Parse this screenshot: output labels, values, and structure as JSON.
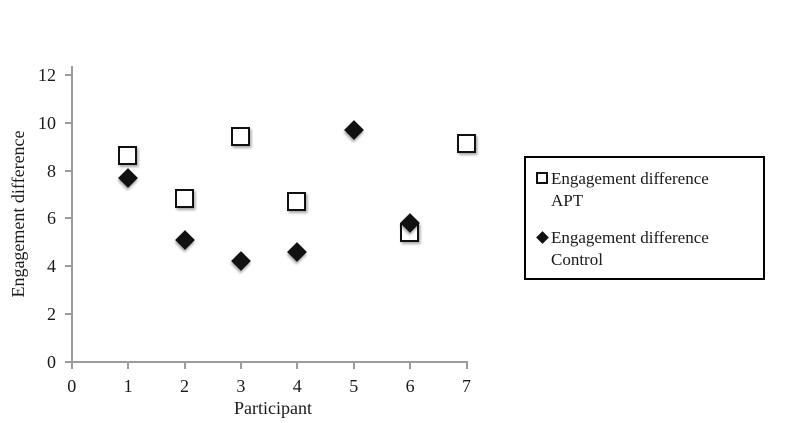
{
  "chart_data": {
    "type": "scatter",
    "title": "",
    "xlabel": "Participant",
    "ylabel": "Engagement difference",
    "xlim": [
      0,
      7
    ],
    "ylim": [
      0,
      12
    ],
    "x_ticks": [
      "0",
      "1",
      "2",
      "3",
      "4",
      "5",
      "6",
      "7"
    ],
    "y_ticks": [
      "0",
      "2",
      "4",
      "6",
      "8",
      "10",
      "12"
    ],
    "grid": false,
    "legend_position": "right",
    "series": [
      {
        "name": "Engagement difference APT",
        "marker": "open-square",
        "points": [
          {
            "x": 1,
            "y": 8.6
          },
          {
            "x": 2,
            "y": 6.8
          },
          {
            "x": 3,
            "y": 9.4
          },
          {
            "x": 4,
            "y": 6.7
          },
          {
            "x": 6,
            "y": 5.4
          },
          {
            "x": 7,
            "y": 9.1
          }
        ]
      },
      {
        "name": "Engagement difference Control",
        "marker": "filled-diamond",
        "points": [
          {
            "x": 1,
            "y": 7.7
          },
          {
            "x": 2,
            "y": 5.1
          },
          {
            "x": 3,
            "y": 4.2
          },
          {
            "x": 4,
            "y": 4.6
          },
          {
            "x": 5,
            "y": 9.7
          },
          {
            "x": 6,
            "y": 5.8
          }
        ]
      }
    ]
  },
  "legend": {
    "entries": [
      {
        "marker": "open-square",
        "line1": "Engagement difference",
        "line2": "APT"
      },
      {
        "marker": "filled-diamond",
        "line1": "Engagement difference",
        "line2": "Control"
      }
    ]
  },
  "colors": {
    "marker": "#111111",
    "axis": "#9c9c9c",
    "text": "#1a1a1a",
    "background": "#ffffff"
  }
}
